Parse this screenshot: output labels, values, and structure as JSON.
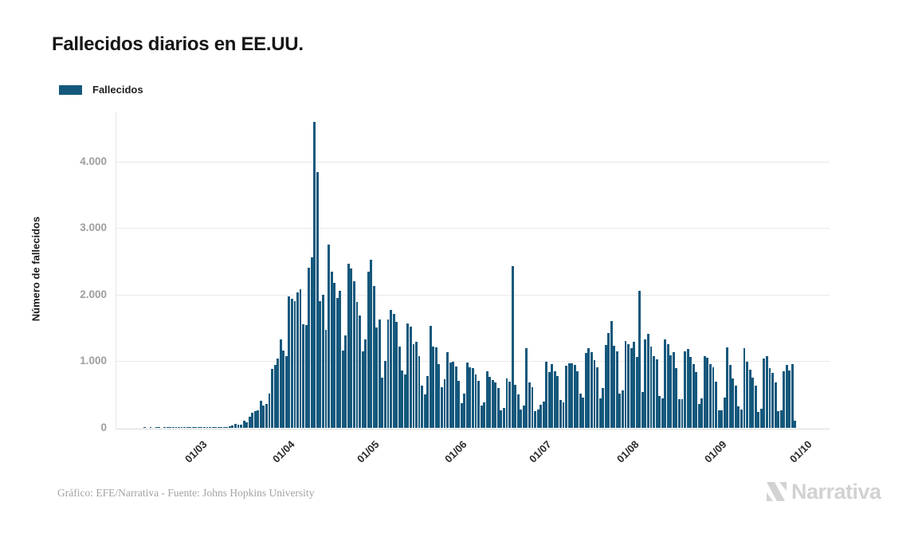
{
  "page": {
    "background": "#ffffff"
  },
  "header": {
    "title": "Fallecidos diarios en EE.UU."
  },
  "legend": {
    "items": [
      {
        "label": "Fallecidos",
        "color": "#15587c"
      }
    ]
  },
  "chart_data": {
    "type": "bar",
    "title": "Fallecidos diarios en EE.UU.",
    "series_name": "Fallecidos",
    "ylabel": "Número de fallecidos",
    "xlabel": "",
    "bar_color": "#15587c",
    "grid": true,
    "legend_position": "top-left",
    "ylim": [
      0,
      4700
    ],
    "y_ticks": [
      "0",
      "1.000",
      "2.000",
      "3.000",
      "4.000"
    ],
    "y_tick_values": [
      0,
      1000,
      2000,
      3000,
      4000
    ],
    "x_ticks": [
      "01/03",
      "01/04",
      "01/05",
      "01/06",
      "01/07",
      "01/08",
      "01/09",
      "01/10"
    ],
    "x_tick_day_indices": [
      24,
      55,
      85,
      116,
      146,
      177,
      208,
      238
    ],
    "frequency": "daily",
    "x_start": "2020-02-06",
    "x_end": "2020-10-03",
    "values": [
      0,
      0,
      0,
      0,
      0,
      0,
      0,
      0,
      0,
      0,
      1,
      0,
      1,
      0,
      1,
      1,
      0,
      1,
      1,
      2,
      1,
      2,
      1,
      3,
      1,
      1,
      4,
      3,
      2,
      4,
      3,
      4,
      5,
      4,
      2,
      8,
      6,
      10,
      11,
      18,
      23,
      41,
      57,
      49,
      46,
      111,
      80,
      164,
      225,
      247,
      268,
      411,
      332,
      363,
      512,
      884,
      943,
      1037,
      1331,
      1165,
      1078,
      1970,
      1943,
      1900,
      2035,
      2087,
      1557,
      1541,
      2408,
      2566,
      4600,
      3845,
      1905,
      2000,
      1475,
      2751,
      2350,
      2178,
      1957,
      2065,
      1157,
      1384,
      2470,
      2390,
      2201,
      1898,
      1691,
      1154,
      1324,
      2350,
      2528,
      2129,
      1510,
      1624,
      750,
      1003,
      1630,
      1772,
      1715,
      1595,
      1218,
      865,
      808,
      1568,
      1518,
      1263,
      1295,
      1077,
      638,
      500,
      774,
      1535,
      1223,
      1212,
      960,
      605,
      730,
      1134,
      982,
      995,
      921,
      709,
      373,
      510,
      979,
      905,
      895,
      802,
      710,
      330,
      380,
      851,
      767,
      722,
      684,
      603,
      267,
      294,
      740,
      700,
      2430,
      648,
      508,
      271,
      335,
      1199,
      685,
      613,
      252,
      276,
      351,
      397,
      993,
      834,
      964,
      849,
      774,
      420,
      379,
      935,
      976,
      969,
      950,
      853,
      516,
      450,
      1126,
      1195,
      1140,
      1019,
      913,
      441,
      599,
      1244,
      1420,
      1600,
      1230,
      1154,
      515,
      565,
      1302,
      1262,
      1203,
      1290,
      1064,
      2060,
      539,
      1324,
      1410,
      1222,
      1076,
      1034,
      477,
      445,
      1324,
      1263,
      1094,
      1142,
      894,
      430,
      427,
      1147,
      1187,
      1068,
      961,
      843,
      363,
      447,
      1083,
      1054,
      954,
      907,
      689,
      268,
      267,
      459,
      1208,
      942,
      746,
      640,
      318,
      276,
      1195,
      995,
      870,
      759,
      637,
      244,
      287,
      1043,
      1076,
      897,
      831,
      683,
      249,
      263,
      848,
      941,
      857,
      953,
      103
    ]
  },
  "footer": {
    "credit": "Gráfico: EFE/Narrativa - Fuente: Johns Hopkins University",
    "brand": "Narrativa"
  }
}
